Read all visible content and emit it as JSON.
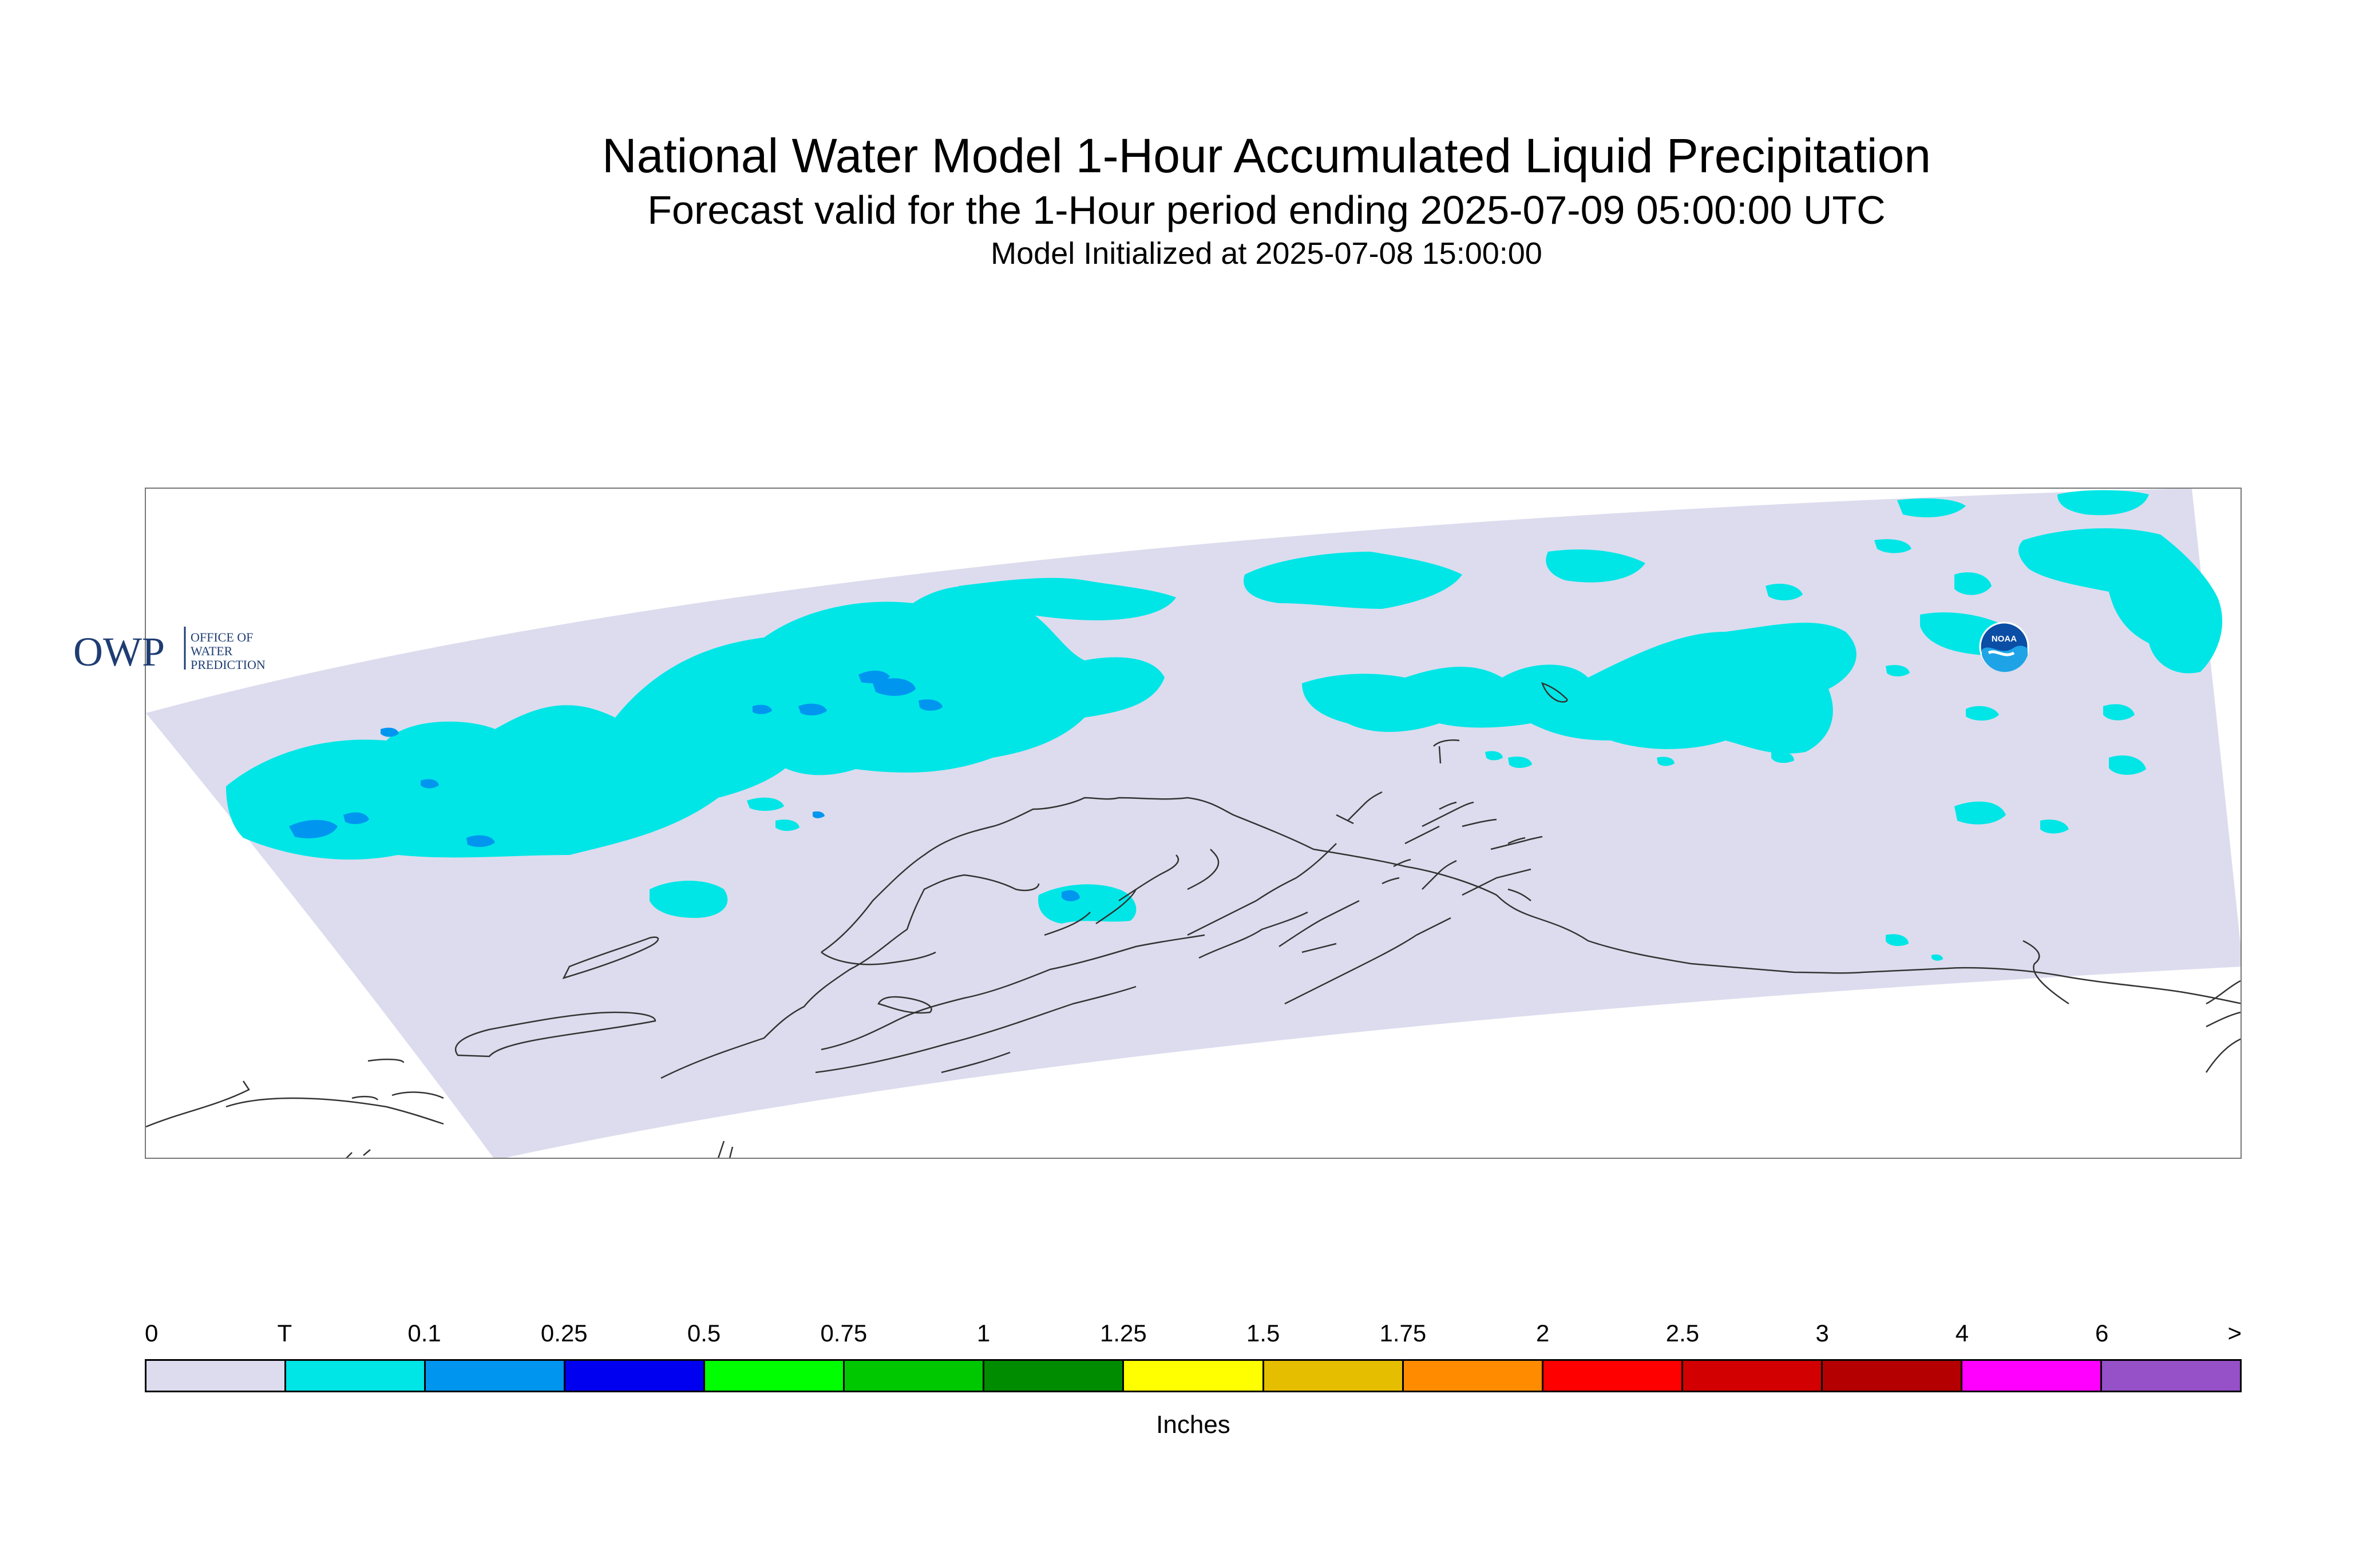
{
  "title": "National Water Model 1-Hour Accumulated Liquid Precipitation",
  "subtitle": "Forecast valid for the 1-Hour period ending 2025-07-09 05:00:00 UTC",
  "init_text": "Model Initialized at 2025-07-08 15:00:00",
  "logos": {
    "owp_main": "OWP",
    "owp_line1": "OFFICE OF",
    "owp_line2": "WATER",
    "owp_line3": "PREDICTION",
    "noaa": "NOAA"
  },
  "legend": {
    "units": "Inches",
    "ticks": [
      "0",
      "T",
      "0.1",
      "0.25",
      "0.5",
      "0.75",
      "1",
      "1.25",
      "1.5",
      "1.75",
      "2",
      "2.5",
      "3",
      "4",
      "6",
      ">"
    ],
    "colors": [
      "#dcdcee",
      "#00e6e6",
      "#0096f0",
      "#0000f0",
      "#00ff00",
      "#00c800",
      "#008c00",
      "#ffff00",
      "#e6be00",
      "#ff8c00",
      "#ff0000",
      "#d20000",
      "#b40000",
      "#ff00ff",
      "#9650c8"
    ]
  },
  "colors": {
    "domain": "#dcdcee",
    "trace": "#00e6e6",
    "light_blue": "#0096f0",
    "coast": "#333333"
  }
}
